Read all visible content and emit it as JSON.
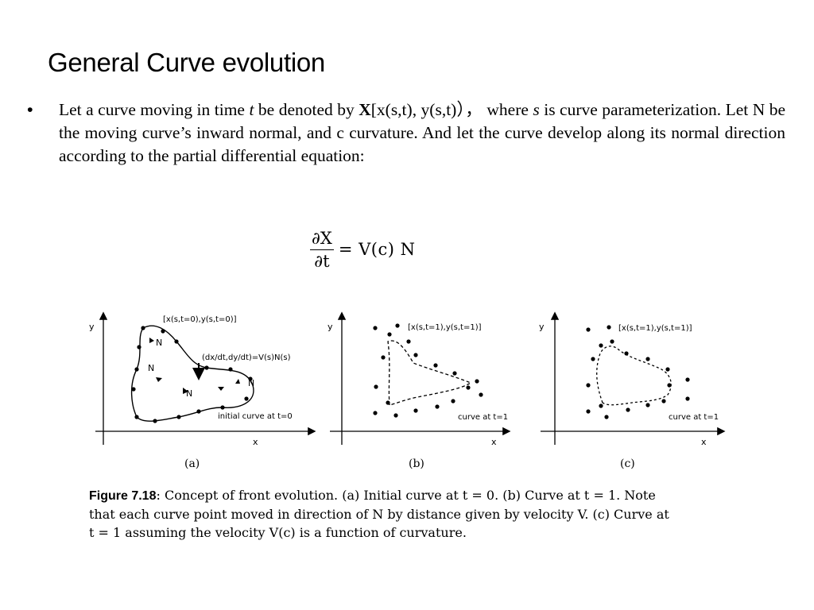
{
  "title": "General Curve evolution",
  "bullet": {
    "dot": "•",
    "p1": "Let a curve moving in time ",
    "t_var": "t",
    "p2": " be denoted by ",
    "X_bold": "X",
    "p3": "[x(s,t), y(s,t)）， where ",
    "s_var": "s",
    "p4": " is curve parameterization. Let N be the moving curve’s inward normal, and c curvature. And let the curve develop along its normal direction according to the partial differential equation:"
  },
  "equation": {
    "numerator": "∂X",
    "denominator": "∂t",
    "rhs": "= V(c) N"
  },
  "figure": {
    "panels": [
      {
        "label": "(a)",
        "x_axis": "x",
        "y_axis": "y",
        "curve_label": "[x(s,t=0),y(s,t=0)]",
        "velocity_label": "(dx/dt,dy/dt)=V(s)N(s)",
        "normal_label": "N",
        "bottom_label": "initial curve at t=0"
      },
      {
        "label": "(b)",
        "x_axis": "x",
        "y_axis": "y",
        "curve_label": "[x(s,t=1),y(s,t=1)]",
        "bottom_label": "curve at t=1"
      },
      {
        "label": "(c)",
        "x_axis": "x",
        "y_axis": "y",
        "curve_label": "[x(s,t=1),y(s,t=1)]",
        "bottom_label": "curve at t=1"
      }
    ]
  },
  "caption": {
    "fig_label": "Figure 7.18",
    "l1": ": Concept of front evolution. (a) Initial curve at t = 0. (b) Curve at t = 1. Note",
    "l2": "that each curve point moved in direction of N by distance given by velocity V. (c) Curve at",
    "l3": "t = 1 assuming the velocity V(c) is a function of curvature."
  }
}
